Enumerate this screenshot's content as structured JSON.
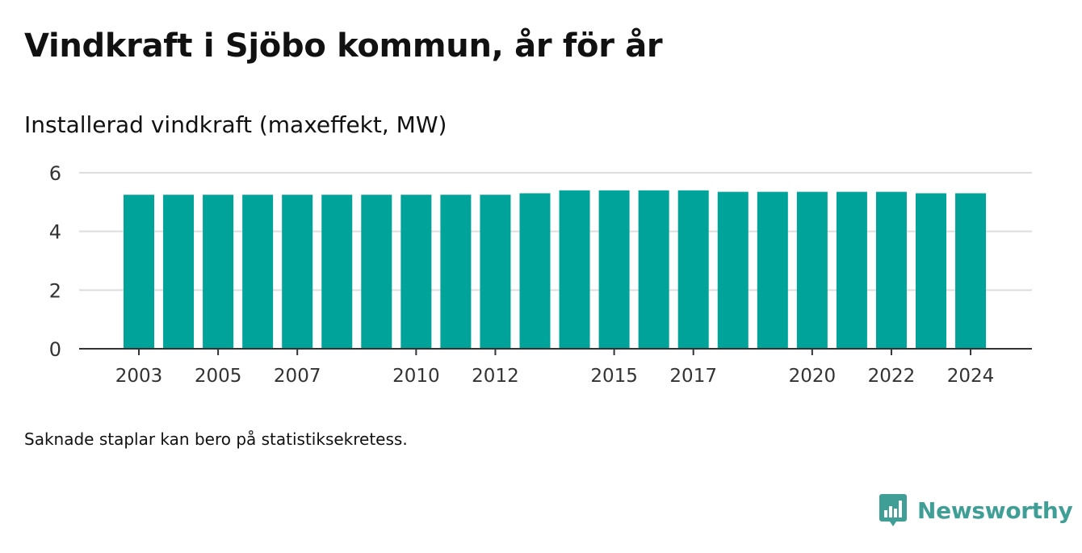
{
  "title": "Vindkraft i Sjöbo kommun, år för år",
  "subtitle": "Installerad vindkraft (maxeffekt, MW)",
  "note": "Saknade staplar kan bero på statistiksekretess.",
  "brand": {
    "name": "Newsworthy",
    "icon": "newsworthy-logo-icon",
    "color": "#3f9f96"
  },
  "chart_data": {
    "type": "bar",
    "categories": [
      "2003",
      "2004",
      "2005",
      "2006",
      "2007",
      "2008",
      "2009",
      "2010",
      "2011",
      "2012",
      "2013",
      "2014",
      "2015",
      "2016",
      "2017",
      "2018",
      "2019",
      "2020",
      "2021",
      "2022",
      "2023",
      "2024"
    ],
    "values": [
      5.25,
      5.25,
      5.25,
      5.25,
      5.25,
      5.25,
      5.25,
      5.25,
      5.25,
      5.25,
      5.3,
      5.4,
      5.4,
      5.4,
      5.4,
      5.35,
      5.35,
      5.35,
      5.35,
      5.35,
      5.3,
      5.3
    ],
    "x_tick_labels": [
      "2003",
      "2005",
      "2007",
      "2010",
      "2012",
      "2015",
      "2017",
      "2020",
      "2022",
      "2024"
    ],
    "y_ticks": [
      0,
      2,
      4,
      6
    ],
    "ylim": [
      0,
      6
    ],
    "xlabel": "",
    "ylabel": "",
    "bar_color": "#00a39a",
    "grid": true
  }
}
